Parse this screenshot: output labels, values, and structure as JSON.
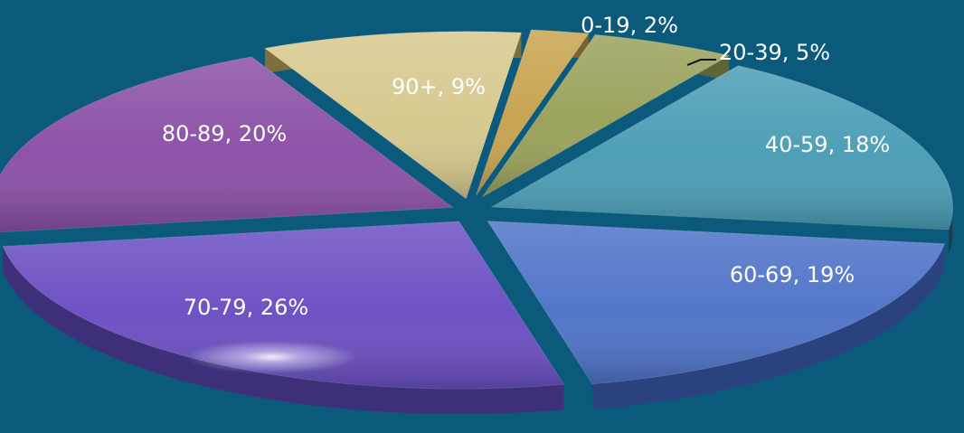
{
  "chart_data": {
    "type": "pie",
    "title": "",
    "slices": [
      {
        "label": "0-19, 2%",
        "category": "0-19",
        "value": 2,
        "color": "#c7a34f",
        "side": "#7a6331"
      },
      {
        "label": "20-39, 5%",
        "category": "20-39",
        "value": 5,
        "color": "#9aa15a",
        "side": "#5e6438"
      },
      {
        "label": "40-59, 18%",
        "category": "40-59",
        "value": 18,
        "color": "#4a9db5",
        "side": "#1d3f4a"
      },
      {
        "label": "60-69, 19%",
        "category": "60-69",
        "value": 19,
        "color": "#4f73c8",
        "side": "#2a437f"
      },
      {
        "label": "70-79, 26%",
        "category": "70-79",
        "value": 26,
        "color": "#6a4fc2",
        "side": "#3e2f79"
      },
      {
        "label": "80-89, 20%",
        "category": "80-89",
        "value": 20,
        "color": "#8a4fa6",
        "side": "#2b1b36"
      },
      {
        "label": "90+, 9%",
        "category": "90+",
        "value": 9,
        "color": "#d6c88d",
        "side": "#7d6e3d"
      }
    ]
  }
}
